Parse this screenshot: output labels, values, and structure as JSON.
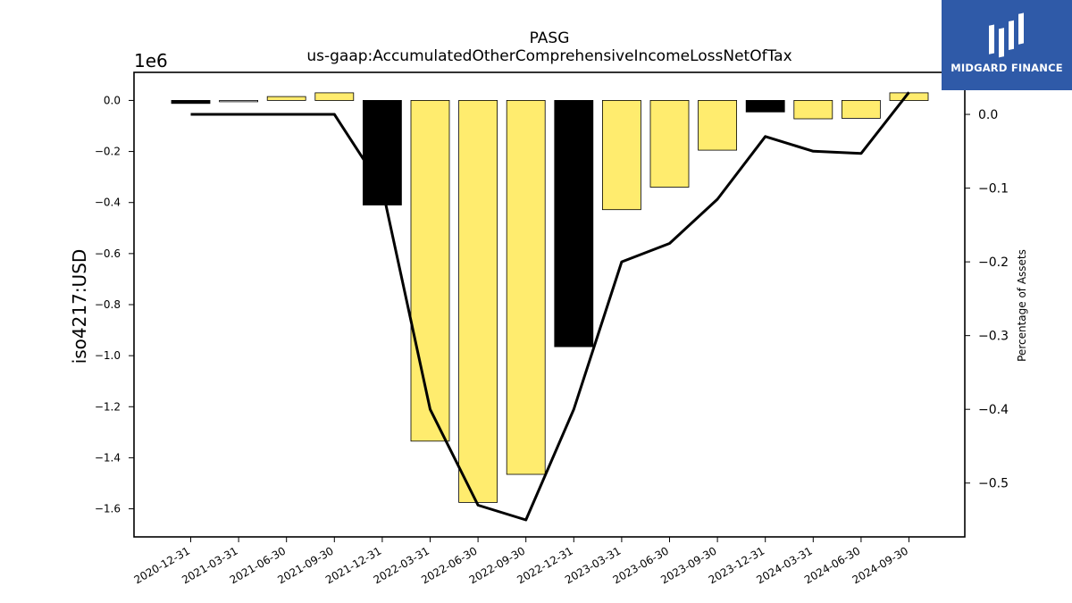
{
  "chart_data": {
    "type": "bar",
    "title": "PASG",
    "subtitle": "us-gaap:AccumulatedOtherComprehensiveIncomeLossNetOfTax",
    "ylabel": "iso4217:USD",
    "y_scale_label": "1e6",
    "y2label": "Percentage of Assets",
    "categories": [
      "2020-12-31",
      "2021-03-31",
      "2021-06-30",
      "2021-09-30",
      "2021-12-31",
      "2022-03-31",
      "2022-06-30",
      "2022-09-30",
      "2022-12-31",
      "2023-03-31",
      "2023-06-30",
      "2023-09-30",
      "2023-12-31",
      "2024-03-31",
      "2024-06-30",
      "2024-09-30"
    ],
    "series": [
      {
        "type": "bar",
        "values": [
          -0.012,
          -0.005,
          0.015,
          0.03,
          -0.41,
          -1.335,
          -1.575,
          -1.465,
          -0.965,
          -0.428,
          -0.34,
          -0.195,
          -0.045,
          -0.072,
          -0.07,
          0.03
        ],
        "bar_colors": [
          "#000000",
          "#ffffff",
          "#ffec6e",
          "#ffec6e",
          "#000000",
          "#ffec6e",
          "#ffec6e",
          "#ffec6e",
          "#000000",
          "#ffec6e",
          "#ffec6e",
          "#ffec6e",
          "#000000",
          "#ffec6e",
          "#ffec6e",
          "#ffec6e"
        ]
      },
      {
        "type": "line",
        "axis": "right",
        "values": [
          0.0,
          -0.0,
          0.0,
          0.0,
          -0.1,
          -0.4,
          -0.53,
          -0.55,
          -0.4,
          -0.2,
          -0.175,
          -0.115,
          -0.03,
          -0.05,
          -0.053,
          0.03
        ],
        "color": "#000000"
      }
    ],
    "ylim": [
      -1.71,
      0.11
    ],
    "yticks": [
      0.0,
      -0.2,
      -0.4,
      -0.6,
      -0.8,
      -1.0,
      -1.2,
      -1.4,
      -1.6
    ],
    "y2lim": [
      -0.573,
      0.057
    ],
    "y2ticks": [
      0.0,
      -0.1,
      -0.2,
      -0.3,
      -0.4,
      -0.5
    ],
    "grid": false,
    "legend": "none"
  },
  "logo": {
    "text": "MIDGARD FINANCE",
    "background": "#2f5aa8"
  }
}
